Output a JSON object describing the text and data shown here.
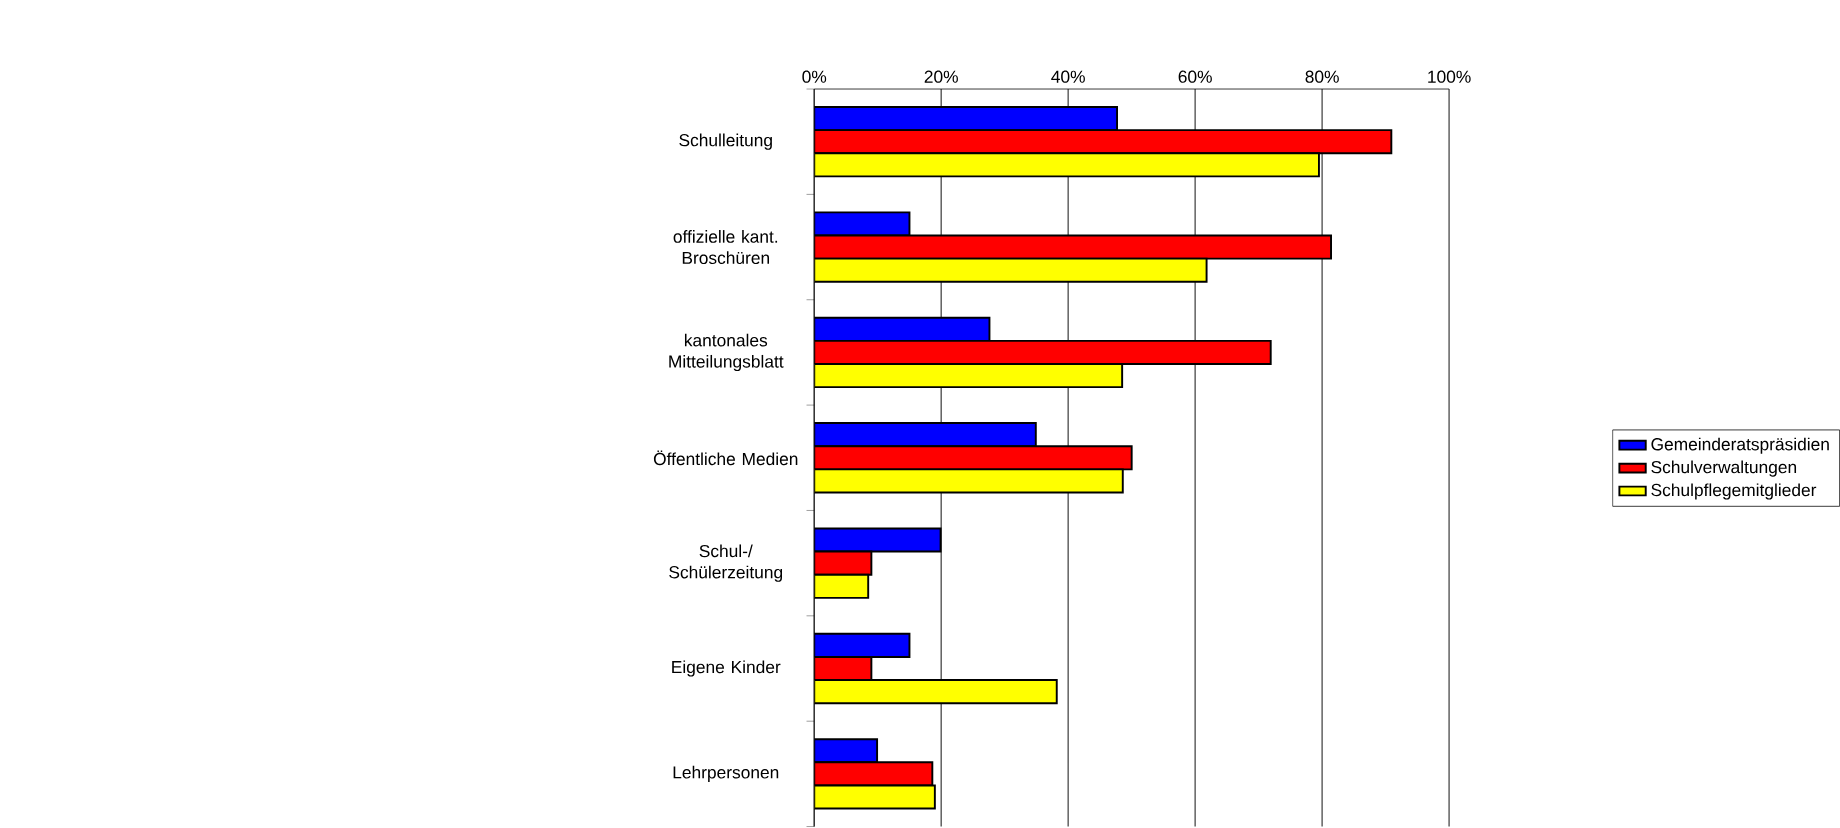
{
  "chart_data": {
    "type": "bar",
    "orientation": "horizontal",
    "categories": [
      "Schulleitung",
      "offizielle kant. Broschüren",
      "kantonales Mitteilungsblatt",
      "Öffentliche Medien",
      "Schul-/ Schülerzeitung",
      "Eigene Kinder",
      "Lehrpersonen"
    ],
    "series": [
      {
        "name": "Gemeinderatspräsidien",
        "color": "#0000ff",
        "values": [
          47.7,
          15.0,
          27.6,
          34.9,
          19.9,
          15.0,
          9.9
        ]
      },
      {
        "name": "Schulverwaltungen",
        "color": "#ff0000",
        "values": [
          90.9,
          81.4,
          71.9,
          50.0,
          9.0,
          9.0,
          18.6
        ]
      },
      {
        "name": "Schulpflegemitglieder",
        "color": "#ffff00",
        "values": [
          79.5,
          61.8,
          48.5,
          48.6,
          8.5,
          38.2,
          19.0
        ]
      }
    ],
    "xlim": [
      0,
      100
    ],
    "xticks": [
      {
        "value": 0,
        "label": "0%"
      },
      {
        "value": 20,
        "label": "20%"
      },
      {
        "value": 40,
        "label": "40%"
      },
      {
        "value": 60,
        "label": "60%"
      },
      {
        "value": 80,
        "label": "80%"
      },
      {
        "value": 100,
        "label": "100%"
      }
    ],
    "grid": "x",
    "legend": "right"
  }
}
